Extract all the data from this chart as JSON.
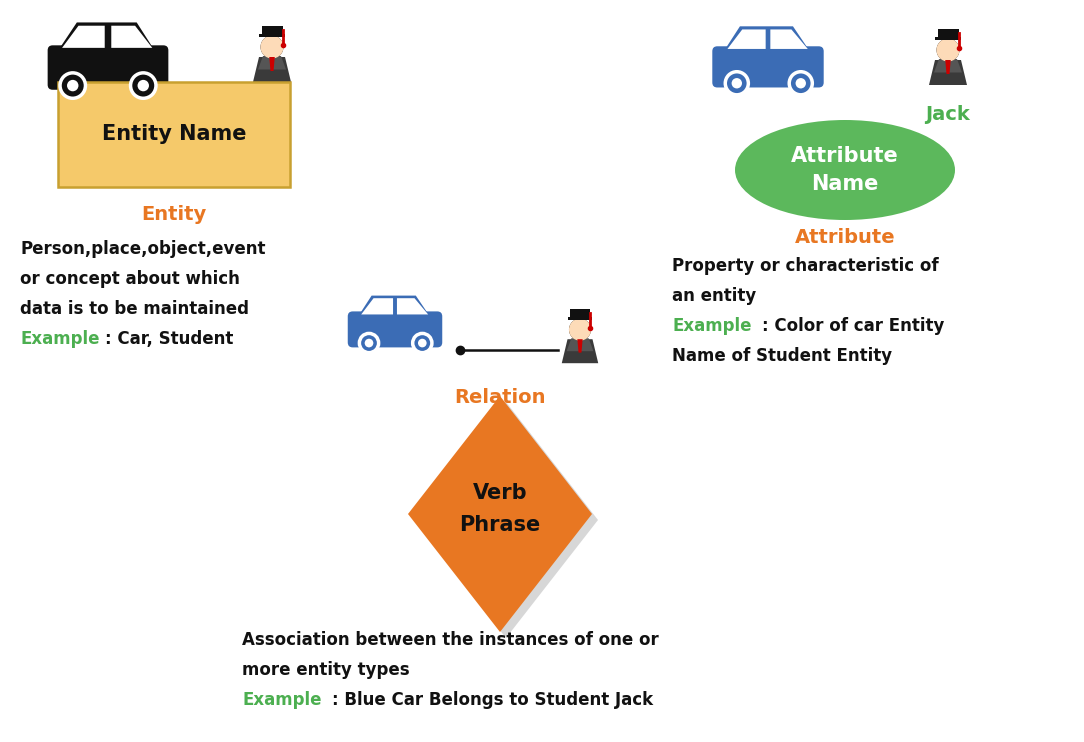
{
  "bg_color": "#ffffff",
  "orange_color": "#E87722",
  "green_color": "#4CAF50",
  "black_color": "#111111",
  "entity_box_color": "#F5C96A",
  "entity_box_edge": "#C8A030",
  "attribute_ellipse_color": "#5CB85C",
  "relation_diamond_color": "#E87722",
  "blue_car_color": "#3B6CB5",
  "car_black_color": "#111111",
  "entity_label": "Entity",
  "entity_name_label": "Entity Name",
  "entity_desc1": "Person,place,object,event",
  "entity_desc2": "or concept about which",
  "entity_desc3": "data is to be maintained",
  "entity_example_green": "Example",
  "entity_example_black": ": Car, Student",
  "attribute_label": "Attribute",
  "attribute_name_label": "Attribute\nName",
  "attribute_desc1": "Property or characteristic of",
  "attribute_desc2": "an entity",
  "attribute_example_green": "Example",
  "attribute_example_black": ": Color of car Entity",
  "attribute_desc3": "Name of Student Entity",
  "jack_label": "Jack",
  "relation_label": "Relation",
  "relation_name_label": "Verb\nPhrase",
  "relation_desc1": "Association between the instances of one or",
  "relation_desc2": "more entity types",
  "relation_example_green": "Example",
  "relation_example_black": ": Blue Car Belongs to Student Jack"
}
